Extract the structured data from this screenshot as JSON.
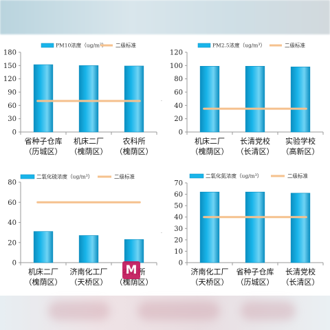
{
  "colors": {
    "bar": "#19b5ea",
    "bar_edge": "#0b8ec0",
    "bar_light": "#6fd3f4",
    "line": "#f5c18e",
    "axis": "#999999",
    "logo": "#c2185b"
  },
  "logo": {
    "letter": "M",
    "icon": "m-logo-icon"
  },
  "chart_data": [
    {
      "type": "bar",
      "title": "",
      "categories": [
        [
          "省种子仓库",
          "（历城区）"
        ],
        [
          "机床二厂",
          "（槐荫区）"
        ],
        [
          "农科所",
          "（槐荫区）"
        ]
      ],
      "series": [
        {
          "name": "PM10浓度（ug/m³）",
          "values": [
            152,
            150,
            149
          ]
        },
        {
          "name": "二级标准",
          "type": "line",
          "values": [
            70,
            70,
            70
          ]
        }
      ],
      "ylim": [
        0,
        180
      ],
      "yticks": [
        0,
        30,
        60,
        90,
        120,
        150,
        180
      ],
      "legend_placement": "top",
      "grid": false
    },
    {
      "type": "bar",
      "title": "",
      "categories": [
        [
          "机床二厂",
          "（槐荫区）"
        ],
        [
          "长清党校",
          "（长清区）"
        ],
        [
          "实验学校",
          "（高新区）"
        ]
      ],
      "series": [
        {
          "name": "PM2.5浓度（ug/m³）",
          "values": [
            99,
            99,
            98
          ]
        },
        {
          "name": "二级标准",
          "type": "line",
          "values": [
            35,
            35,
            35
          ]
        }
      ],
      "ylim": [
        0,
        120
      ],
      "yticks": [
        0,
        20,
        40,
        60,
        80,
        100,
        120
      ],
      "legend_placement": "top",
      "grid": false
    },
    {
      "type": "bar",
      "title": "",
      "categories": [
        [
          "机床二厂",
          "（槐荫区）"
        ],
        [
          "济南化工厂",
          "（天桥区）"
        ],
        [
          "农科所",
          "（槐荫区）"
        ]
      ],
      "series": [
        {
          "name": "二氧化硫浓度（ug/m³）",
          "values": [
            31,
            27,
            23
          ]
        },
        {
          "name": "二级标准",
          "type": "line",
          "values": [
            60,
            60,
            60
          ]
        }
      ],
      "ylim": [
        0,
        80
      ],
      "yticks": [
        0,
        20,
        40,
        60,
        80
      ],
      "legend_placement": "top",
      "grid": false
    },
    {
      "type": "bar",
      "title": "",
      "categories": [
        [
          "济南化工厂",
          "（天桥区）"
        ],
        [
          "省种子仓库",
          "（历城区）"
        ],
        [
          "长清党校",
          "（长清区）"
        ]
      ],
      "series": [
        {
          "name": "二氧化氮浓度（ug/m³）",
          "values": [
            62,
            62,
            61
          ]
        },
        {
          "name": "二级标准",
          "type": "line",
          "values": [
            40,
            40,
            40
          ]
        }
      ],
      "ylim": [
        0,
        70
      ],
      "yticks": [
        0,
        10,
        20,
        30,
        40,
        50,
        60,
        70
      ],
      "legend_placement": "top",
      "grid": false
    }
  ]
}
